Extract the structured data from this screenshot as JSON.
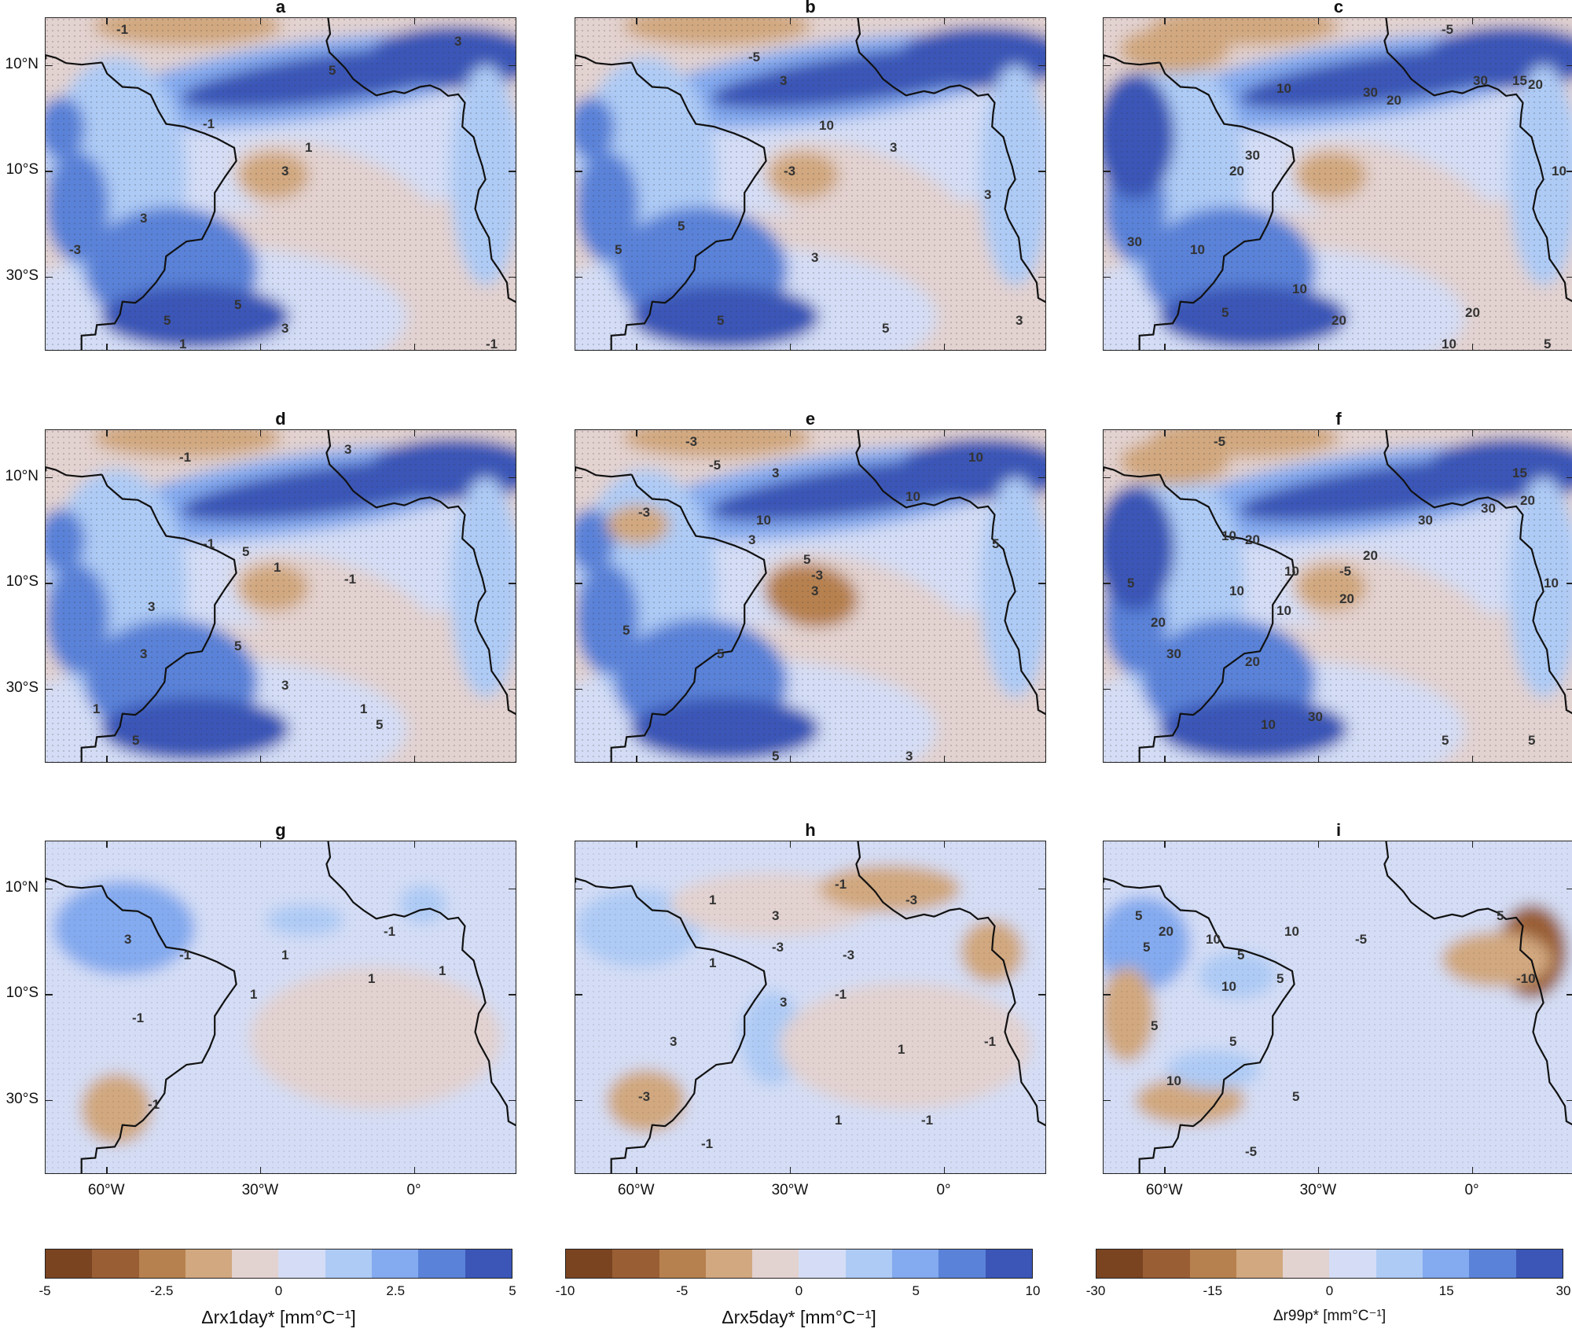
{
  "panels": [
    {
      "id": "a",
      "letter": "a",
      "scheme": "s1",
      "labels": [
        "-1",
        "3",
        "5",
        "-1",
        "1",
        "3",
        "3",
        "-3",
        "5",
        "5",
        "3",
        "1",
        "-1"
      ]
    },
    {
      "id": "b",
      "letter": "b",
      "scheme": "s1",
      "labels": [
        "-5",
        "3",
        "3",
        "10",
        "-3",
        "3",
        "5",
        "5",
        "3",
        "5",
        "5",
        "3"
      ]
    },
    {
      "id": "c",
      "letter": "c",
      "scheme": "s3",
      "labels": [
        "-5",
        "15",
        "20",
        "30",
        "10",
        "30",
        "20",
        "30",
        "10",
        "20",
        "30",
        "10",
        "5",
        "20",
        "10",
        "20",
        "10",
        "5"
      ]
    },
    {
      "id": "d",
      "letter": "d",
      "scheme": "s1",
      "labels": [
        "-1",
        "-1",
        "3",
        "5",
        "1",
        "3",
        "-1",
        "3",
        "5",
        "3",
        "5",
        "1",
        "5",
        "1"
      ]
    },
    {
      "id": "e",
      "letter": "e",
      "scheme": "s2",
      "labels": [
        "-3",
        "-5",
        "3",
        "10",
        "-3",
        "5",
        "10",
        "3",
        "10",
        "5",
        "-3",
        "3",
        "5",
        "5",
        "3",
        "5",
        "5"
      ]
    },
    {
      "id": "f",
      "letter": "f",
      "scheme": "s3",
      "labels": [
        "-5",
        "15",
        "20",
        "30",
        "10",
        "30",
        "20",
        "20",
        "10",
        "10",
        "-5",
        "10",
        "20",
        "10",
        "5",
        "20",
        "30",
        "20",
        "30",
        "10",
        "5",
        "5"
      ]
    },
    {
      "id": "g",
      "letter": "g",
      "scheme": "s4",
      "labels": [
        "-1",
        "3",
        "1",
        "-1",
        "1",
        "1",
        "-1",
        "1",
        "-1"
      ]
    },
    {
      "id": "h",
      "letter": "h",
      "scheme": "s5",
      "labels": [
        "-1",
        "1",
        "3",
        "-3",
        "-3",
        "-3",
        "1",
        "3",
        "-1",
        "3",
        "-3",
        "-1",
        "1",
        "-1",
        "1",
        "-1"
      ]
    },
    {
      "id": "i",
      "letter": "i",
      "scheme": "s6",
      "labels": [
        "5",
        "20",
        "10",
        "5",
        "10",
        "5",
        "-5",
        "5",
        "-10",
        "10",
        "5",
        "5",
        "5",
        "10",
        "5",
        "-5"
      ]
    }
  ],
  "axes": {
    "lat_labels": [
      "10°N",
      "10°S",
      "30°S"
    ],
    "lon_labels": [
      "60°W",
      "30°W",
      "0°"
    ]
  },
  "colorbars": [
    {
      "title": "Δrx1day* [mm°C⁻¹]",
      "ticks": [
        "-5",
        "-2.5",
        "0",
        "2.5",
        "5"
      ]
    },
    {
      "title": "Δrx5day* [mm°C⁻¹]",
      "ticks": [
        "-10",
        "-5",
        "0",
        "5",
        "10"
      ]
    },
    {
      "title": "Δr99p* [mm°C⁻¹]",
      "ticks": [
        "-30",
        "-15",
        "0",
        "15",
        "30"
      ]
    }
  ],
  "colors": [
    "#7a4421",
    "#9a5e35",
    "#b7814f",
    "#d1a87f",
    "#e2d2d0",
    "#d4ddf5",
    "#aecbf5",
    "#84aaef",
    "#5a82d8",
    "#3b56b7"
  ]
}
